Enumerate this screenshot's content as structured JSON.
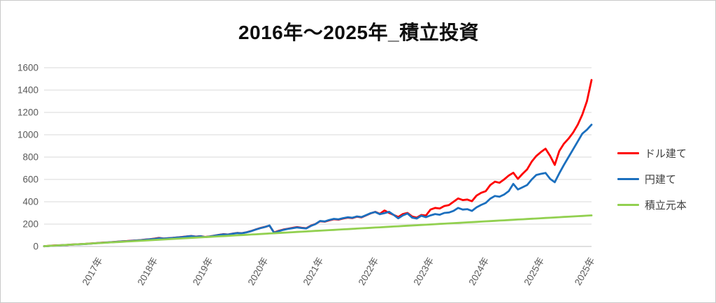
{
  "title": "2016年～2025年_積立投資",
  "legend": {
    "items": [
      {
        "key": "dollar",
        "label": "ドル建て",
        "color": "#fe0000"
      },
      {
        "key": "yen",
        "label": "円建て",
        "color": "#1b6fbe"
      },
      {
        "key": "principal",
        "label": "積立元本",
        "color": "#92d050"
      }
    ]
  },
  "colors": {
    "gridline": "#d9d9d9",
    "axis_line": "#bfbfbf",
    "tick_text": "#595959",
    "title_text": "#0d0d0d"
  },
  "chart_data": {
    "type": "line",
    "title": "2016年～2025年_積立投資",
    "x_description": "monthly points, Jan 2016 - Dec 2025",
    "grid": "horizontal",
    "legend_position": "right",
    "y_axis": {
      "min": 0,
      "max": 1600,
      "step": 200,
      "tick_labels": [
        "0",
        "200",
        "400",
        "600",
        "800",
        "1000",
        "1200",
        "1400",
        "1600"
      ]
    },
    "x_ticks": [
      {
        "label": "2017年",
        "month_index": 12
      },
      {
        "label": "2018年",
        "month_index": 24
      },
      {
        "label": "2019年",
        "month_index": 36
      },
      {
        "label": "2020年",
        "month_index": 48
      },
      {
        "label": "2021年",
        "month_index": 60
      },
      {
        "label": "2022年",
        "month_index": 72
      },
      {
        "label": "2023年",
        "month_index": 84
      },
      {
        "label": "2024年",
        "month_index": 96
      },
      {
        "label": "2025年",
        "month_index": 108
      },
      {
        "label": "2025年",
        "month_index": 119
      }
    ],
    "series": [
      {
        "key": "dollar",
        "name": "ドル建て",
        "color": "#fe0000",
        "values": [
          2,
          5,
          8,
          10,
          12,
          14,
          17,
          19,
          21,
          23,
          26,
          29,
          32,
          35,
          37,
          40,
          43,
          46,
          48,
          51,
          54,
          57,
          61,
          65,
          70,
          76,
          71,
          74,
          77,
          81,
          85,
          90,
          94,
          88,
          92,
          85,
          90,
          97,
          104,
          110,
          107,
          115,
          121,
          119,
          127,
          138,
          152,
          165,
          175,
          186,
          125,
          140,
          151,
          159,
          166,
          173,
          167,
          163,
          186,
          201,
          226,
          222,
          234,
          244,
          240,
          250,
          258,
          254,
          266,
          260,
          278,
          296,
          310,
          292,
          322,
          300,
          282,
          264,
          290,
          300,
          268,
          258,
          282,
          276,
          330,
          345,
          340,
          362,
          370,
          400,
          430,
          415,
          420,
          405,
          455,
          480,
          495,
          550,
          580,
          570,
          600,
          635,
          660,
          605,
          650,
          690,
          760,
          810,
          845,
          875,
          810,
          730,
          855,
          920,
          965,
          1020,
          1090,
          1180,
          1300,
          1490
        ]
      },
      {
        "key": "yen",
        "name": "円建て",
        "color": "#1b6fbe",
        "values": [
          2,
          4,
          7,
          9,
          11,
          13,
          16,
          18,
          20,
          22,
          25,
          28,
          31,
          34,
          36,
          39,
          42,
          45,
          47,
          50,
          53,
          56,
          60,
          64,
          68,
          74,
          70,
          73,
          76,
          80,
          84,
          89,
          93,
          87,
          91,
          84,
          89,
          96,
          103,
          109,
          106,
          114,
          120,
          118,
          126,
          137,
          151,
          164,
          174,
          188,
          122,
          137,
          149,
          157,
          163,
          170,
          165,
          161,
          184,
          200,
          228,
          224,
          237,
          247,
          243,
          253,
          261,
          257,
          269,
          263,
          280,
          298,
          308,
          289,
          298,
          310,
          282,
          252,
          278,
          295,
          258,
          250,
          275,
          262,
          278,
          290,
          284,
          300,
          304,
          318,
          345,
          330,
          334,
          318,
          350,
          372,
          390,
          428,
          452,
          445,
          465,
          495,
          560,
          510,
          530,
          550,
          600,
          640,
          650,
          658,
          605,
          575,
          655,
          730,
          800,
          870,
          940,
          1010,
          1045,
          1090
        ]
      },
      {
        "key": "principal",
        "name": "積立元本",
        "color": "#92d050",
        "linear": {
          "start": 2.5,
          "end": 278
        },
        "points": 120
      }
    ]
  }
}
